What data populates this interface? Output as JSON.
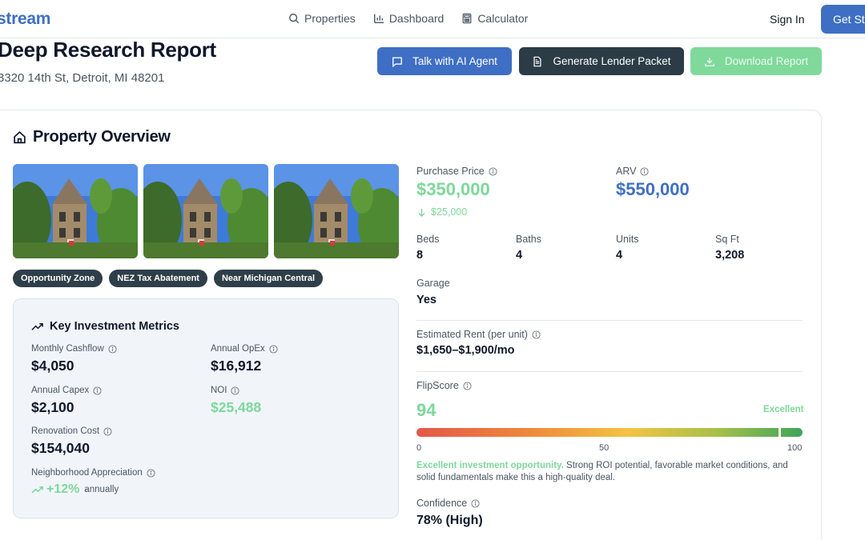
{
  "nav": {
    "logo": "stream",
    "links": [
      {
        "label": "Properties",
        "icon": "search-icon"
      },
      {
        "label": "Dashboard",
        "icon": "bar-chart-icon"
      },
      {
        "label": "Calculator",
        "icon": "calculator-icon"
      }
    ],
    "sign_in": "Sign In",
    "get_started": "Get Sta"
  },
  "header": {
    "title": "Deep Research Report",
    "address": "3320 14th St, Detroit, MI 48201",
    "actions": {
      "talk_ai": "Talk with AI Agent",
      "lender_packet": "Generate Lender Packet",
      "download": "Download Report"
    }
  },
  "overview": {
    "title": "Property Overview",
    "tags": [
      "Opportunity Zone",
      "NEZ Tax Abatement",
      "Near Michigan Central"
    ],
    "metrics": {
      "title": "Key Investment Metrics",
      "monthly_cashflow_label": "Monthly Cashflow",
      "monthly_cashflow": "$4,050",
      "annual_opex_label": "Annual OpEx",
      "annual_opex": "$16,912",
      "annual_capex_label": "Annual Capex",
      "annual_capex": "$2,100",
      "noi_label": "NOI",
      "noi": "$25,488",
      "renovation_label": "Renovation Cost",
      "renovation": "$154,040",
      "appreciation_label": "Neighborhood Appreciation",
      "appreciation": "+12%",
      "appreciation_suffix": "annually"
    },
    "details": {
      "purchase_price_label": "Purchase Price",
      "purchase_price": "$350,000",
      "price_delta": "$25,000",
      "arv_label": "ARV",
      "arv": "$550,000",
      "beds_label": "Beds",
      "beds": "8",
      "baths_label": "Baths",
      "baths": "4",
      "units_label": "Units",
      "units": "4",
      "sqft_label": "Sq Ft",
      "sqft": "3,208",
      "garage_label": "Garage",
      "garage": "Yes",
      "rent_label": "Estimated Rent (per unit)",
      "rent": "$1,650–$1,900/mo",
      "flipscore_label": "FlipScore",
      "flipscore": "94",
      "flipscore_rating": "Excellent",
      "flipscore_scale": [
        "0",
        "50",
        "100"
      ],
      "flipscore_desc_lead": "Excellent investment opportunity.",
      "flipscore_desc_rest": " Strong ROI potential, favorable market conditions, and solid fundamentals make this a high-quality deal.",
      "confidence_label": "Confidence",
      "confidence": "78% (High)"
    }
  },
  "colors": {
    "brand": "#3e6fc4",
    "dark_button": "#2b3c46",
    "positive": "#7ed79a",
    "tag_bg": "#2f3f49"
  }
}
